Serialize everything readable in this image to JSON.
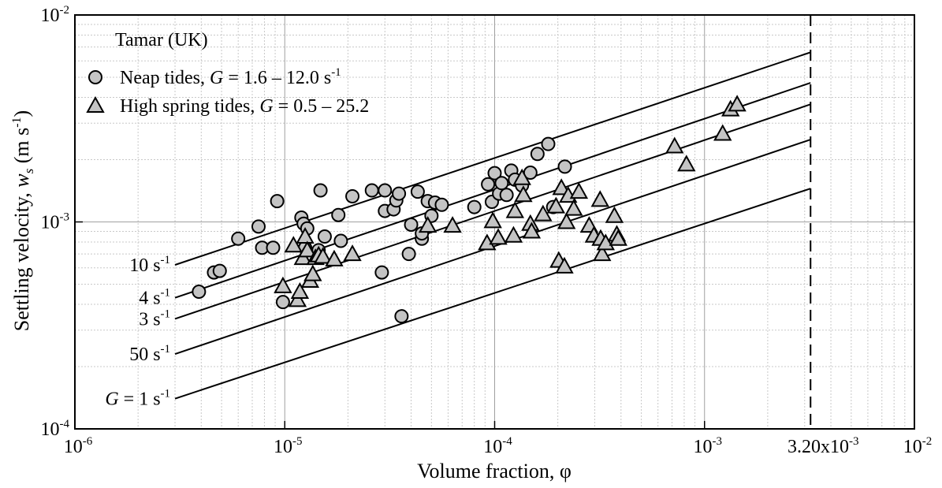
{
  "chart_data": {
    "type": "scatter",
    "title": "Tamar (UK)",
    "xlabel": "Volume fraction, φ",
    "ylabel_parts": [
      "Settling velocity, ",
      "w",
      "s",
      " (m s",
      "-1",
      ")"
    ],
    "x_scale": "log",
    "y_scale": "log",
    "xlim": [
      1e-06,
      0.01
    ],
    "ylim": [
      0.0001,
      0.01
    ],
    "grid": true,
    "legend_position": "top-left",
    "x_ticks": [
      {
        "value": 1e-06,
        "base": "10",
        "exp": "-6"
      },
      {
        "value": 1e-05,
        "base": "10",
        "exp": "-5"
      },
      {
        "value": 0.0001,
        "base": "10",
        "exp": "-4"
      },
      {
        "value": 0.001,
        "base": "10",
        "exp": "-3"
      },
      {
        "value": 0.01,
        "base": "10",
        "exp": "-2"
      }
    ],
    "y_ticks": [
      {
        "value": 0.0001,
        "base": "10",
        "exp": "-4"
      },
      {
        "value": 0.001,
        "base": "10",
        "exp": "-3"
      },
      {
        "value": 0.01,
        "base": "10",
        "exp": "-2"
      }
    ],
    "vline": {
      "x": 0.0032,
      "label_base": "3.20x10",
      "label_exp": "-3"
    },
    "legend": [
      {
        "marker": "circle",
        "text": "Neap tides, ",
        "g": "G",
        "range": " = 1.6 – 12.0 s",
        "exp": "-1"
      },
      {
        "marker": "triangle",
        "text": "High spring tides, ",
        "g": "G",
        "range": " = 0.5 – 25.2",
        "exp": ""
      }
    ],
    "reference_lines": [
      {
        "prefix": "",
        "label": "10 s",
        "exp": "-1",
        "x": [
          3e-06,
          0.0032
        ],
        "y": [
          0.00062,
          0.0066
        ]
      },
      {
        "prefix": "",
        "label": "4 s",
        "exp": "-1",
        "x": [
          3e-06,
          0.0032
        ],
        "y": [
          0.00043,
          0.0047
        ]
      },
      {
        "prefix": "",
        "label": "3 s",
        "exp": "-1",
        "x": [
          3e-06,
          0.0032
        ],
        "y": [
          0.00034,
          0.0037
        ]
      },
      {
        "prefix": "",
        "label": "50 s",
        "exp": "-1",
        "x": [
          3e-06,
          0.0032
        ],
        "y": [
          0.00023,
          0.0025
        ]
      },
      {
        "prefix": "G",
        "label": " = 1 s",
        "exp": "-1",
        "x": [
          3e-06,
          0.0032
        ],
        "y": [
          0.00014,
          0.00145
        ]
      }
    ],
    "series": [
      {
        "name": "Neap tides",
        "marker": "circle",
        "points": [
          [
            3.9e-06,
            0.00046
          ],
          [
            4.6e-06,
            0.00057
          ],
          [
            4.9e-06,
            0.00058
          ],
          [
            6e-06,
            0.00083
          ],
          [
            7.5e-06,
            0.00095
          ],
          [
            7.8e-06,
            0.00075
          ],
          [
            8.8e-06,
            0.00075
          ],
          [
            9.2e-06,
            0.00126
          ],
          [
            9.8e-06,
            0.00041
          ],
          [
            1.2e-05,
            0.00105
          ],
          [
            1.23e-05,
            0.00098
          ],
          [
            1.28e-05,
            0.00093
          ],
          [
            1.25e-05,
            0.00075
          ],
          [
            1.45e-05,
            0.00073
          ],
          [
            1.48e-05,
            0.00142
          ],
          [
            1.55e-05,
            0.00085
          ],
          [
            1.8e-05,
            0.00108
          ],
          [
            1.85e-05,
            0.00081
          ],
          [
            2.1e-05,
            0.00133
          ],
          [
            2.6e-05,
            0.00142
          ],
          [
            2.9e-05,
            0.00057
          ],
          [
            3e-05,
            0.00142
          ],
          [
            3e-05,
            0.00113
          ],
          [
            3.3e-05,
            0.00115
          ],
          [
            3.4e-05,
            0.00127
          ],
          [
            3.5e-05,
            0.00137
          ],
          [
            3.6e-05,
            0.00035
          ],
          [
            3.9e-05,
            0.0007
          ],
          [
            4e-05,
            0.00097
          ],
          [
            4.3e-05,
            0.0014
          ],
          [
            4.5e-05,
            0.00083
          ],
          [
            4.5e-05,
            0.00088
          ],
          [
            4.8e-05,
            0.00126
          ],
          [
            5e-05,
            0.00107
          ],
          [
            5.2e-05,
            0.00124
          ],
          [
            5.6e-05,
            0.00121
          ],
          [
            8e-05,
            0.00118
          ],
          [
            9.3e-05,
            0.00152
          ],
          [
            9.7e-05,
            0.00125
          ],
          [
            0.0001,
            0.00172
          ],
          [
            0.000105,
            0.00137
          ],
          [
            0.000108,
            0.00154
          ],
          [
            0.000114,
            0.00135
          ],
          [
            0.00012,
            0.00177
          ],
          [
            0.000125,
            0.0016
          ],
          [
            0.000135,
            0.0015
          ],
          [
            0.000148,
            0.00173
          ],
          [
            0.00016,
            0.00213
          ],
          [
            0.00018,
            0.00238
          ],
          [
            0.00019,
            0.00118
          ],
          [
            0.000216,
            0.00185
          ]
        ]
      },
      {
        "name": "High spring tides",
        "marker": "triangle",
        "points": [
          [
            9.8e-06,
            0.00049
          ],
          [
            1.1e-05,
            0.00077
          ],
          [
            1.15e-05,
            0.00042
          ],
          [
            1.18e-05,
            0.00046
          ],
          [
            1.22e-05,
            0.00067
          ],
          [
            1.25e-05,
            0.00085
          ],
          [
            1.28e-05,
            0.00073
          ],
          [
            1.32e-05,
            0.00052
          ],
          [
            1.36e-05,
            0.00056
          ],
          [
            1.4e-05,
            0.00067
          ],
          [
            1.45e-05,
            0.00069
          ],
          [
            1.52e-05,
            0.00068
          ],
          [
            1.72e-05,
            0.00066
          ],
          [
            2.1e-05,
            0.0007
          ],
          [
            4.8e-05,
            0.00096
          ],
          [
            6.3e-05,
            0.00096
          ],
          [
            9.2e-05,
            0.00079
          ],
          [
            9.8e-05,
            0.00101
          ],
          [
            0.000104,
            0.00084
          ],
          [
            0.000123,
            0.00086
          ],
          [
            0.000125,
            0.00113
          ],
          [
            0.000135,
            0.00163
          ],
          [
            0.000137,
            0.00135
          ],
          [
            0.000148,
            0.00098
          ],
          [
            0.00015,
            0.0009
          ],
          [
            0.00017,
            0.00109
          ],
          [
            0.000196,
            0.00119
          ],
          [
            0.000202,
            0.00065
          ],
          [
            0.000208,
            0.00146
          ],
          [
            0.000215,
            0.00061
          ],
          [
            0.00022,
            0.001
          ],
          [
            0.000224,
            0.00134
          ],
          [
            0.000238,
            0.00116
          ],
          [
            0.000252,
            0.0014
          ],
          [
            0.000282,
            0.00096
          ],
          [
            0.000297,
            0.00086
          ],
          [
            0.000318,
            0.00128
          ],
          [
            0.00032,
            0.00083
          ],
          [
            0.000325,
            0.0007
          ],
          [
            0.000338,
            0.00079
          ],
          [
            0.000372,
            0.00107
          ],
          [
            0.000382,
            0.00087
          ],
          [
            0.000388,
            0.00083
          ],
          [
            0.00072,
            0.00232
          ],
          [
            0.00082,
            0.0019
          ],
          [
            0.00122,
            0.00267
          ],
          [
            0.00133,
            0.0035
          ],
          [
            0.00143,
            0.0037
          ]
        ]
      }
    ]
  }
}
